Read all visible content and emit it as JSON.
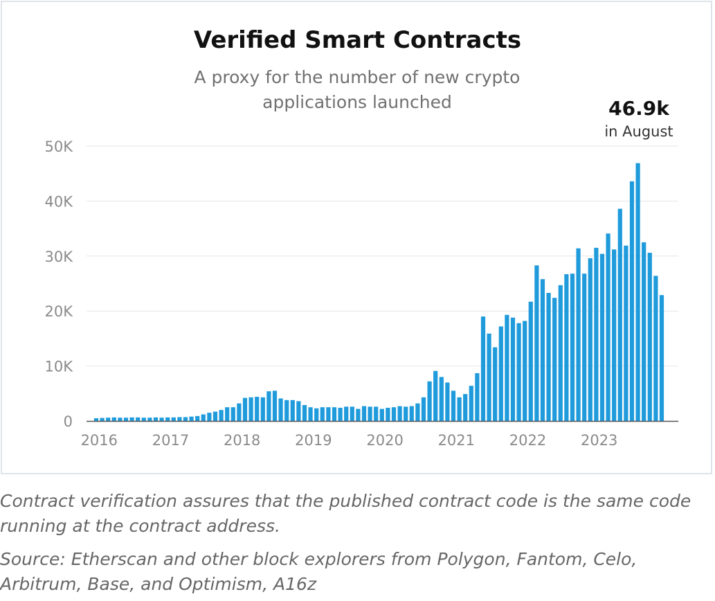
{
  "chart_data": {
    "type": "bar",
    "title": "Verified Smart Contracts",
    "subtitle": "A proxy for the number of new crypto applications launched",
    "annotation": {
      "value": "46.9k",
      "label": "in August"
    },
    "y_ticks": [
      "0",
      "10K",
      "20K",
      "30K",
      "40K",
      "50K"
    ],
    "x_ticks": [
      "2016",
      "2017",
      "2018",
      "2019",
      "2020",
      "2021",
      "2022",
      "2023"
    ],
    "ylim": [
      0,
      50000
    ],
    "grid": true,
    "bar_color": "#1f9bdc",
    "series": [
      {
        "values": [
          500,
          550,
          600,
          650,
          600,
          600,
          650,
          650,
          600,
          600,
          650,
          600,
          650,
          650,
          700,
          700,
          800,
          900,
          1200,
          1500,
          1700,
          2000,
          2500,
          2500,
          3200,
          4200,
          4300,
          4400,
          4300,
          5400,
          5500,
          4100,
          3800,
          3800,
          3600,
          2900,
          2500,
          2300,
          2500,
          2500,
          2500,
          2400,
          2600,
          2600,
          2200,
          2700,
          2600,
          2600,
          2200,
          2400,
          2500,
          2700,
          2600,
          2700,
          3200,
          4300,
          7200,
          9100,
          8000,
          7000,
          5500,
          4300,
          4900,
          6400,
          8700,
          19000,
          15900,
          13400,
          17200,
          19300,
          18800,
          17800,
          18200,
          21700,
          28300,
          25800,
          23300,
          22400,
          24700,
          26700,
          26800,
          31400,
          26800,
          29600,
          31500,
          30400,
          34100,
          31200,
          38600,
          31900,
          43600,
          46900,
          32500,
          30600,
          26400,
          22900
        ]
      }
    ]
  },
  "footnote": "Contract verification assures that the published contract code is the same code running at the contract address.",
  "source": "Source: Etherscan and other block explorers from Polygon, Fantom, Celo, Arbitrum, Base, and Optimism, A16z"
}
